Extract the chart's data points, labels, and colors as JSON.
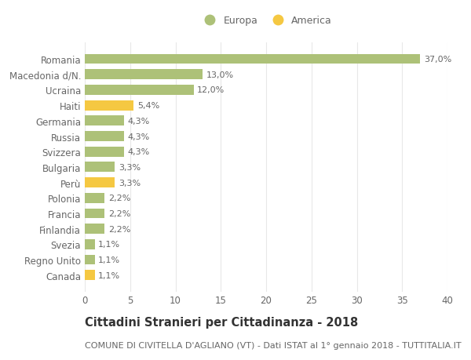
{
  "categories": [
    "Romania",
    "Macedonia d/N.",
    "Ucraina",
    "Haiti",
    "Germania",
    "Russia",
    "Svizzera",
    "Bulgaria",
    "Perù",
    "Polonia",
    "Francia",
    "Finlandia",
    "Svezia",
    "Regno Unito",
    "Canada"
  ],
  "values": [
    37.0,
    13.0,
    12.0,
    5.4,
    4.3,
    4.3,
    4.3,
    3.3,
    3.3,
    2.2,
    2.2,
    2.2,
    1.1,
    1.1,
    1.1
  ],
  "colors": [
    "#adc178",
    "#adc178",
    "#adc178",
    "#f5c842",
    "#adc178",
    "#adc178",
    "#adc178",
    "#adc178",
    "#f5c842",
    "#adc178",
    "#adc178",
    "#adc178",
    "#adc178",
    "#adc178",
    "#f5c842"
  ],
  "labels": [
    "37,0%",
    "13,0%",
    "12,0%",
    "5,4%",
    "4,3%",
    "4,3%",
    "4,3%",
    "3,3%",
    "3,3%",
    "2,2%",
    "2,2%",
    "2,2%",
    "1,1%",
    "1,1%",
    "1,1%"
  ],
  "europa_color": "#adc178",
  "america_color": "#f5c842",
  "title": "Cittadini Stranieri per Cittadinanza - 2018",
  "subtitle": "COMUNE DI CIVITELLA D'AGLIANO (VT) - Dati ISTAT al 1° gennaio 2018 - TUTTITALIA.IT",
  "xlim": [
    0,
    40
  ],
  "xticks": [
    0,
    5,
    10,
    15,
    20,
    25,
    30,
    35,
    40
  ],
  "background_color": "#ffffff",
  "grid_color": "#e8e8e8",
  "bar_height": 0.65,
  "title_fontsize": 10.5,
  "subtitle_fontsize": 8,
  "tick_fontsize": 8.5,
  "label_fontsize": 8,
  "legend_fontsize": 9,
  "text_color": "#666666"
}
